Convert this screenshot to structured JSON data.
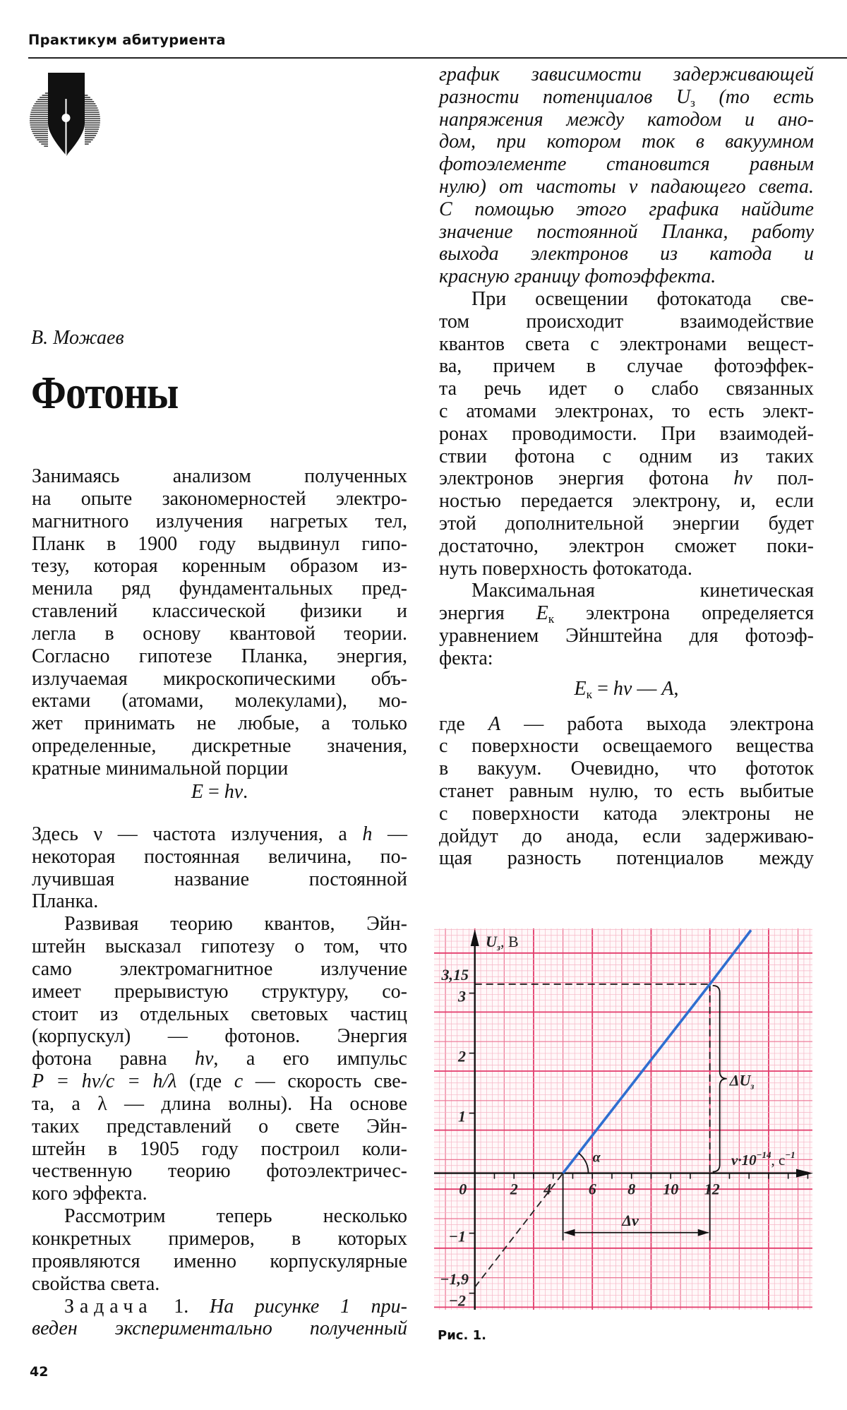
{
  "header": {
    "section": "Практикум абитуриента"
  },
  "article": {
    "author": "В. Можаев",
    "title": "Фотоны"
  },
  "left": {
    "blocks": [
      {
        "kind": "para",
        "lines": [
          "Занимаясь анализом полученных",
          "на опыте закономерностей электро-",
          "магнитного излучения нагретых тел,",
          "Планк в 1900 году выдвинул гипо-",
          "тезу, которая коренным образом из-",
          "менила ряд фундаментальных пред-",
          "ставлений классической физики и",
          "легла в основу квантовой теории.",
          "Согласно гипотезе Планка, энергия,",
          "излучаемая микроскопическими объ-",
          "ектами (атомами, молекулами), мо-",
          "жет принимать не любые, а только",
          "определенные, дискретные значения,",
          "кратные минимальной порции"
        ]
      },
      {
        "kind": "formula",
        "parts": [
          {
            "t": "E",
            "s": "i"
          },
          {
            "t": " = ",
            "s": "n"
          },
          {
            "t": "hν",
            "s": "i"
          },
          {
            "t": ".",
            "s": "n"
          }
        ]
      },
      {
        "kind": "para",
        "lines": [
          [
            {
              "t": "Здесь ν — частота излучения, а ",
              "s": "n"
            },
            {
              "t": "h",
              "s": "i"
            },
            {
              "t": " —",
              "s": "n"
            }
          ],
          "некоторая постоянная величина, по-",
          "лучившая название постоянной",
          "Планка."
        ]
      },
      {
        "kind": "para",
        "indent": true,
        "lines": [
          "Развивая теорию квантов, Эйн-",
          "штейн высказал гипотезу о том, что",
          "само электромагнитное излучение",
          "имеет прерывистую структуру, со-",
          "стоит из отдельных световых частиц",
          "(корпускул) — фотонов. Энергия",
          [
            {
              "t": "фотона равна ",
              "s": "n"
            },
            {
              "t": "hν",
              "s": "i"
            },
            {
              "t": ", а его импульс",
              "s": "n"
            }
          ],
          [
            {
              "t": "P = hν/c = h/λ",
              "s": "i"
            },
            {
              "t": " (где ",
              "s": "n"
            },
            {
              "t": "c",
              "s": "i"
            },
            {
              "t": " — скорость све-",
              "s": "n"
            }
          ],
          "та, а λ — длина волны). На основе",
          "таких представлений о свете Эйн-",
          "штейн в 1905 году построил коли-",
          "чественную теорию фотоэлектричес-",
          "кого эффекта."
        ]
      },
      {
        "kind": "para",
        "indent": true,
        "lines": [
          "Рассмотрим теперь несколько",
          "конкретных примеров, в которых",
          "проявляются именно корпускулярные",
          "свойства света."
        ]
      },
      {
        "kind": "para",
        "indent": true,
        "continues": true,
        "lines": [
          [
            {
              "t": "Задача",
              "s": "sp"
            },
            {
              "t": " 1. ",
              "s": "n"
            },
            {
              "t": "На рисунке 1 при-",
              "s": "i"
            }
          ],
          [
            {
              "t": "веден экспериментально полученный",
              "s": "i"
            }
          ]
        ]
      }
    ]
  },
  "right": {
    "blocks": [
      {
        "kind": "para",
        "style": "italic",
        "lines": [
          "график зависимости задерживающей",
          [
            {
              "t": "разности потенциалов ",
              "s": "i"
            },
            {
              "t": "U",
              "s": "i"
            },
            {
              "t": "з",
              "s": "sub"
            },
            {
              "t": " (то есть",
              "s": "i"
            }
          ],
          "напряжения между катодом и ано-",
          "дом, при котором ток в вакуумном",
          "фотоэлементе становится равным",
          "нулю) от частоты ν падающего света.",
          "С помощью этого графика найдите",
          "значение постоянной Планка, работу",
          "выхода электронов из катода и",
          "красную границу фотоэффекта."
        ]
      },
      {
        "kind": "para",
        "indent": true,
        "lines": [
          "При освещении фотокатода све-",
          "том происходит взаимодействие",
          "квантов света с электронами вещест-",
          "ва, причем в случае фотоэффек-",
          "та речь идет о слабо связанных",
          "с атомами электронах, то есть элект-",
          "ронах проводимости. При взаимодей-",
          "ствии фотона с одним из таких",
          [
            {
              "t": "электронов энергия фотона ",
              "s": "n"
            },
            {
              "t": "hν",
              "s": "i"
            },
            {
              "t": " пол-",
              "s": "n"
            }
          ],
          "ностью передается электрону, и, если",
          "этой дополнительной энергии будет",
          "достаточно, электрон сможет поки-",
          "нуть поверхность фотокатода."
        ]
      },
      {
        "kind": "para",
        "indent": true,
        "lines": [
          "Максимальная кинетическая",
          [
            {
              "t": "энергия ",
              "s": "n"
            },
            {
              "t": "E",
              "s": "i"
            },
            {
              "t": "к",
              "s": "sub"
            },
            {
              "t": " электрона определяется",
              "s": "n"
            }
          ],
          "уравнением Эйнштейна для фотоэф-",
          "фекта:"
        ]
      },
      {
        "kind": "formula",
        "parts": [
          {
            "t": "E",
            "s": "i"
          },
          {
            "t": "к",
            "s": "sub"
          },
          {
            "t": " = ",
            "s": "n"
          },
          {
            "t": "hν",
            "s": "i"
          },
          {
            "t": " — ",
            "s": "n"
          },
          {
            "t": "A",
            "s": "i"
          },
          {
            "t": ",",
            "s": "n"
          }
        ]
      },
      {
        "kind": "para",
        "continues": true,
        "lines": [
          [
            {
              "t": "где ",
              "s": "n"
            },
            {
              "t": "A",
              "s": "i"
            },
            {
              "t": " — работа выхода электрона",
              "s": "n"
            }
          ],
          "с поверхности освещаемого вещества",
          "в вакуум. Очевидно, что фототок",
          "станет равным нулю, то есть выбитые",
          "с поверхности катода электроны не",
          "дойдут до анода, если задерживаю-",
          "щая разность потенциалов между"
        ]
      }
    ]
  },
  "figure": {
    "caption": "Рис. 1."
  },
  "page_number": "42",
  "chart_data": {
    "type": "line",
    "ylabel": {
      "main": "U",
      "sub": "з",
      "unit": ", В"
    },
    "xlabel": {
      "main": "ν·10",
      "exp": "−14",
      "unit": ", с",
      "unit_exp": "−1"
    },
    "x_ticks": [
      {
        "v": 0,
        "label": "0"
      },
      {
        "v": 2,
        "label": "2"
      },
      {
        "v": 4,
        "label": "4"
      },
      {
        "v": 6,
        "label": "6"
      },
      {
        "v": 8,
        "label": "8"
      },
      {
        "v": 10,
        "label": "10"
      },
      {
        "v": 12,
        "label": "12"
      }
    ],
    "y_ticks": [
      {
        "v": 3,
        "label": "3"
      },
      {
        "v": 2,
        "label": "2"
      },
      {
        "v": 1,
        "label": "1"
      },
      {
        "v": -1,
        "label": "−1"
      },
      {
        "v": -2,
        "label": "−2"
      }
    ],
    "xlim": [
      -2,
      17.3
    ],
    "ylim": [
      -2.3,
      4.1
    ],
    "series": [
      {
        "style": "solid",
        "color": "#2f6fd0",
        "x": [
          4.5,
          12,
          14.1
        ],
        "y": [
          0,
          3.15,
          4.05
        ]
      },
      {
        "style": "dashed",
        "color": "#222222",
        "x": [
          0,
          4.5
        ],
        "y": [
          -1.9,
          0
        ]
      }
    ],
    "annotations": {
      "y_point_label": "3,15",
      "y_point": 3.15,
      "y_intercept_label": "−1,9",
      "y_intercept": -1.9,
      "x_point": 12,
      "x_intercept": 4.5,
      "delta_nu": "Δν",
      "delta_u": {
        "main": "ΔU",
        "sub": "з"
      },
      "angle": "α"
    },
    "grid": true,
    "grid_color": "#e33b6b",
    "line_color": "#2f6fd0"
  }
}
